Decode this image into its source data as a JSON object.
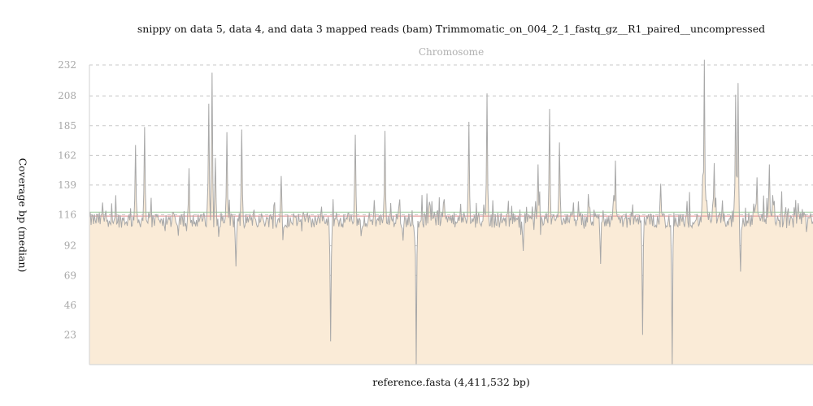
{
  "chart_data": {
    "type": "area",
    "title": "snippy on data 5, data 4, and data 3 mapped reads (bam) Trimmomatic_on_004_2_1_fastq_gz__R1_paired__uncompressed",
    "panel_label": "Chromosome",
    "xlabel": "reference.fasta (4,411,532 bp)",
    "ylabel": "Coverage bp (median)",
    "ylim": [
      0,
      232
    ],
    "xlim": [
      0,
      4411532
    ],
    "y_ticks": [
      23,
      46,
      69,
      92,
      116,
      139,
      162,
      185,
      208,
      232
    ],
    "y_tick_labels": [
      "23",
      "46",
      "69",
      "92",
      "116",
      "139",
      "162",
      "185",
      "208",
      "232"
    ],
    "grid": true,
    "reference_lines": [
      {
        "kind": "median",
        "value": 115,
        "color": "#e8a0a0"
      },
      {
        "kind": "mean",
        "value": 118,
        "color": "#a6d0a6"
      }
    ],
    "colors": {
      "fill": "#faebd7",
      "line": "#a8a8a8",
      "grid": "#c8c8c8",
      "axis": "#d8d8d8"
    },
    "baseline": 112,
    "spikes": [
      [
        0.064,
        170
      ],
      [
        0.076,
        184
      ],
      [
        0.138,
        152
      ],
      [
        0.165,
        202
      ],
      [
        0.169,
        226
      ],
      [
        0.174,
        160
      ],
      [
        0.19,
        180
      ],
      [
        0.203,
        76
      ],
      [
        0.21,
        182
      ],
      [
        0.265,
        146
      ],
      [
        0.333,
        18
      ],
      [
        0.368,
        178
      ],
      [
        0.408,
        181
      ],
      [
        0.433,
        96
      ],
      [
        0.452,
        0
      ],
      [
        0.47,
        126
      ],
      [
        0.525,
        188
      ],
      [
        0.549,
        210
      ],
      [
        0.6,
        88
      ],
      [
        0.62,
        155
      ],
      [
        0.636,
        198
      ],
      [
        0.65,
        172
      ],
      [
        0.707,
        78
      ],
      [
        0.727,
        158
      ],
      [
        0.765,
        23
      ],
      [
        0.79,
        140
      ],
      [
        0.805,
        0
      ],
      [
        0.85,
        96
      ],
      [
        0.847,
        146
      ],
      [
        0.85,
        236
      ],
      [
        0.863,
        156
      ],
      [
        0.893,
        209
      ],
      [
        0.897,
        218
      ],
      [
        0.9,
        72
      ],
      [
        0.923,
        145
      ],
      [
        0.94,
        155
      ],
      [
        0.98,
        125
      ]
    ]
  }
}
